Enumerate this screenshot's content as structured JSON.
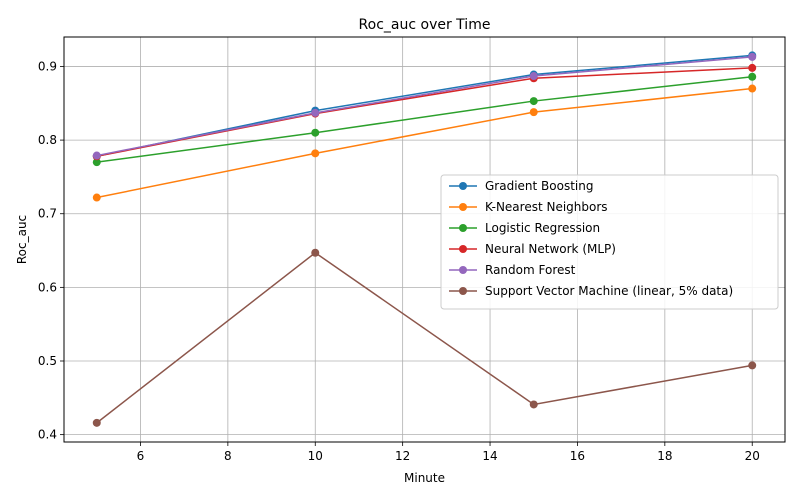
{
  "chart_data": {
    "type": "line",
    "title": "Roc_auc over Time",
    "xlabel": "Minute",
    "ylabel": "Roc_auc",
    "x": [
      5,
      10,
      15,
      20
    ],
    "xlim": [
      4.25,
      20.75
    ],
    "ylim": [
      0.39,
      0.94
    ],
    "xticks": [
      "6",
      "8",
      "10",
      "12",
      "14",
      "16",
      "18",
      "20"
    ],
    "yticks": [
      "0.4",
      "0.5",
      "0.6",
      "0.7",
      "0.8",
      "0.9"
    ],
    "grid": true,
    "legend_position": "center-right",
    "series": [
      {
        "name": "Gradient Boosting",
        "color": "#1f77b4",
        "values": [
          0.778,
          0.84,
          0.889,
          0.915
        ]
      },
      {
        "name": "K-Nearest Neighbors",
        "color": "#ff7f0e",
        "values": [
          0.722,
          0.782,
          0.838,
          0.87
        ]
      },
      {
        "name": "Logistic Regression",
        "color": "#2ca02c",
        "values": [
          0.77,
          0.81,
          0.853,
          0.886
        ]
      },
      {
        "name": "Neural Network (MLP)",
        "color": "#d62728",
        "values": [
          0.778,
          0.836,
          0.884,
          0.898
        ]
      },
      {
        "name": "Random Forest",
        "color": "#9467bd",
        "values": [
          0.779,
          0.837,
          0.887,
          0.913
        ]
      },
      {
        "name": "Support Vector Machine (linear, 5% data)",
        "color": "#8c564b",
        "values": [
          0.416,
          0.647,
          0.441,
          0.494
        ]
      }
    ]
  }
}
